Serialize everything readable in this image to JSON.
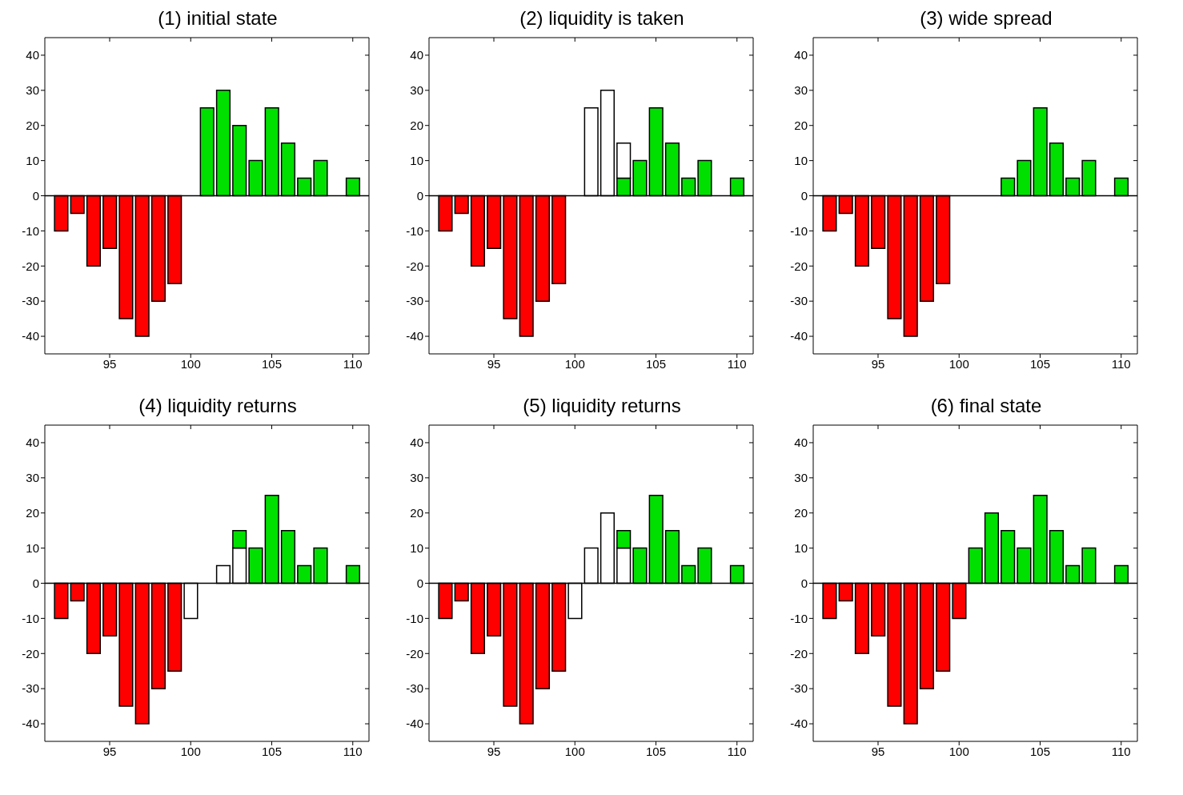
{
  "chart_data": [
    {
      "type": "bar",
      "title": "(1) initial state",
      "x": [
        92,
        93,
        94,
        95,
        96,
        97,
        98,
        99,
        100,
        101,
        102,
        103,
        104,
        105,
        106,
        107,
        108,
        109,
        110
      ],
      "xlim": [
        91,
        111
      ],
      "xticks": [
        95,
        100,
        105,
        110
      ],
      "ylim": [
        -45,
        45
      ],
      "yticks": [
        -40,
        -30,
        -20,
        -10,
        0,
        10,
        20,
        30,
        40
      ],
      "stacked": true,
      "grid": false,
      "legend": false,
      "ref_lines": [
        {
          "axis": "y",
          "value": 0
        }
      ],
      "series": [
        {
          "color": "#ff0000",
          "values": [
            -10,
            -5,
            -20,
            -15,
            -35,
            -40,
            -30,
            -25,
            null,
            null,
            null,
            null,
            null,
            null,
            null,
            null,
            null,
            null,
            null
          ]
        },
        {
          "color": "#00e000",
          "values": [
            null,
            null,
            null,
            null,
            null,
            null,
            null,
            null,
            null,
            25,
            30,
            20,
            10,
            25,
            15,
            5,
            10,
            null,
            5
          ]
        }
      ]
    },
    {
      "type": "bar",
      "title": "(2) liquidity is taken",
      "x": [
        92,
        93,
        94,
        95,
        96,
        97,
        98,
        99,
        100,
        101,
        102,
        103,
        104,
        105,
        106,
        107,
        108,
        109,
        110
      ],
      "xlim": [
        91,
        111
      ],
      "xticks": [
        95,
        100,
        105,
        110
      ],
      "ylim": [
        -45,
        45
      ],
      "yticks": [
        -40,
        -30,
        -20,
        -10,
        0,
        10,
        20,
        30,
        40
      ],
      "stacked": true,
      "grid": false,
      "legend": false,
      "ref_lines": [
        {
          "axis": "y",
          "value": 0
        }
      ],
      "series": [
        {
          "color": "#ff0000",
          "values": [
            -10,
            -5,
            -20,
            -15,
            -35,
            -40,
            -30,
            -25,
            null,
            null,
            null,
            null,
            null,
            null,
            null,
            null,
            null,
            null,
            null
          ]
        },
        {
          "color": "#00e000",
          "values": [
            null,
            null,
            null,
            null,
            null,
            null,
            null,
            null,
            null,
            null,
            null,
            5,
            10,
            25,
            15,
            5,
            10,
            null,
            5
          ]
        },
        {
          "color": "#ffffff",
          "values": [
            null,
            null,
            null,
            null,
            null,
            null,
            null,
            null,
            null,
            25,
            30,
            10,
            null,
            null,
            null,
            null,
            null,
            null,
            null
          ]
        }
      ]
    },
    {
      "type": "bar",
      "title": "(3) wide spread",
      "x": [
        92,
        93,
        94,
        95,
        96,
        97,
        98,
        99,
        100,
        101,
        102,
        103,
        104,
        105,
        106,
        107,
        108,
        109,
        110
      ],
      "xlim": [
        91,
        111
      ],
      "xticks": [
        95,
        100,
        105,
        110
      ],
      "ylim": [
        -45,
        45
      ],
      "yticks": [
        -40,
        -30,
        -20,
        -10,
        0,
        10,
        20,
        30,
        40
      ],
      "stacked": true,
      "grid": false,
      "legend": false,
      "ref_lines": [
        {
          "axis": "y",
          "value": 0
        }
      ],
      "series": [
        {
          "color": "#ff0000",
          "values": [
            -10,
            -5,
            -20,
            -15,
            -35,
            -40,
            -30,
            -25,
            null,
            null,
            null,
            null,
            null,
            null,
            null,
            null,
            null,
            null,
            null
          ]
        },
        {
          "color": "#00e000",
          "values": [
            null,
            null,
            null,
            null,
            null,
            null,
            null,
            null,
            null,
            null,
            null,
            5,
            10,
            25,
            15,
            5,
            10,
            null,
            5
          ]
        }
      ]
    },
    {
      "type": "bar",
      "title": "(4) liquidity returns",
      "x": [
        92,
        93,
        94,
        95,
        96,
        97,
        98,
        99,
        100,
        101,
        102,
        103,
        104,
        105,
        106,
        107,
        108,
        109,
        110
      ],
      "xlim": [
        91,
        111
      ],
      "xticks": [
        95,
        100,
        105,
        110
      ],
      "ylim": [
        -45,
        45
      ],
      "yticks": [
        -40,
        -30,
        -20,
        -10,
        0,
        10,
        20,
        30,
        40
      ],
      "stacked": true,
      "grid": false,
      "legend": false,
      "ref_lines": [
        {
          "axis": "y",
          "value": 0
        }
      ],
      "series": [
        {
          "color": "#ff0000",
          "values": [
            -10,
            -5,
            -20,
            -15,
            -35,
            -40,
            -30,
            -25,
            null,
            null,
            null,
            null,
            null,
            null,
            null,
            null,
            null,
            null,
            null
          ]
        },
        {
          "color": "#ffffff",
          "values": [
            null,
            null,
            null,
            null,
            null,
            null,
            null,
            null,
            -10,
            null,
            5,
            10,
            null,
            null,
            null,
            null,
            null,
            null,
            null
          ]
        },
        {
          "color": "#00e000",
          "values": [
            null,
            null,
            null,
            null,
            null,
            null,
            null,
            null,
            null,
            null,
            null,
            5,
            10,
            25,
            15,
            5,
            10,
            null,
            5
          ]
        }
      ]
    },
    {
      "type": "bar",
      "title": "(5) liquidity returns",
      "x": [
        92,
        93,
        94,
        95,
        96,
        97,
        98,
        99,
        100,
        101,
        102,
        103,
        104,
        105,
        106,
        107,
        108,
        109,
        110
      ],
      "xlim": [
        91,
        111
      ],
      "xticks": [
        95,
        100,
        105,
        110
      ],
      "ylim": [
        -45,
        45
      ],
      "yticks": [
        -40,
        -30,
        -20,
        -10,
        0,
        10,
        20,
        30,
        40
      ],
      "stacked": true,
      "grid": false,
      "legend": false,
      "ref_lines": [
        {
          "axis": "y",
          "value": 0
        }
      ],
      "series": [
        {
          "color": "#ff0000",
          "values": [
            -10,
            -5,
            -20,
            -15,
            -35,
            -40,
            -30,
            -25,
            null,
            null,
            null,
            null,
            null,
            null,
            null,
            null,
            null,
            null,
            null
          ]
        },
        {
          "color": "#ffffff",
          "values": [
            null,
            null,
            null,
            null,
            null,
            null,
            null,
            null,
            -10,
            10,
            20,
            10,
            null,
            null,
            null,
            null,
            null,
            null,
            null
          ]
        },
        {
          "color": "#00e000",
          "values": [
            null,
            null,
            null,
            null,
            null,
            null,
            null,
            null,
            null,
            null,
            null,
            5,
            10,
            25,
            15,
            5,
            10,
            null,
            5
          ]
        }
      ]
    },
    {
      "type": "bar",
      "title": "(6) final state",
      "x": [
        92,
        93,
        94,
        95,
        96,
        97,
        98,
        99,
        100,
        101,
        102,
        103,
        104,
        105,
        106,
        107,
        108,
        109,
        110
      ],
      "xlim": [
        91,
        111
      ],
      "xticks": [
        95,
        100,
        105,
        110
      ],
      "ylim": [
        -45,
        45
      ],
      "yticks": [
        -40,
        -30,
        -20,
        -10,
        0,
        10,
        20,
        30,
        40
      ],
      "stacked": true,
      "grid": false,
      "legend": false,
      "ref_lines": [
        {
          "axis": "y",
          "value": 0
        }
      ],
      "series": [
        {
          "color": "#ff0000",
          "values": [
            -10,
            -5,
            -20,
            -15,
            -35,
            -40,
            -30,
            -25,
            -10,
            null,
            null,
            null,
            null,
            null,
            null,
            null,
            null,
            null,
            null
          ]
        },
        {
          "color": "#00e000",
          "values": [
            null,
            null,
            null,
            null,
            null,
            null,
            null,
            null,
            null,
            10,
            20,
            15,
            10,
            25,
            15,
            5,
            10,
            null,
            5
          ]
        }
      ]
    }
  ]
}
